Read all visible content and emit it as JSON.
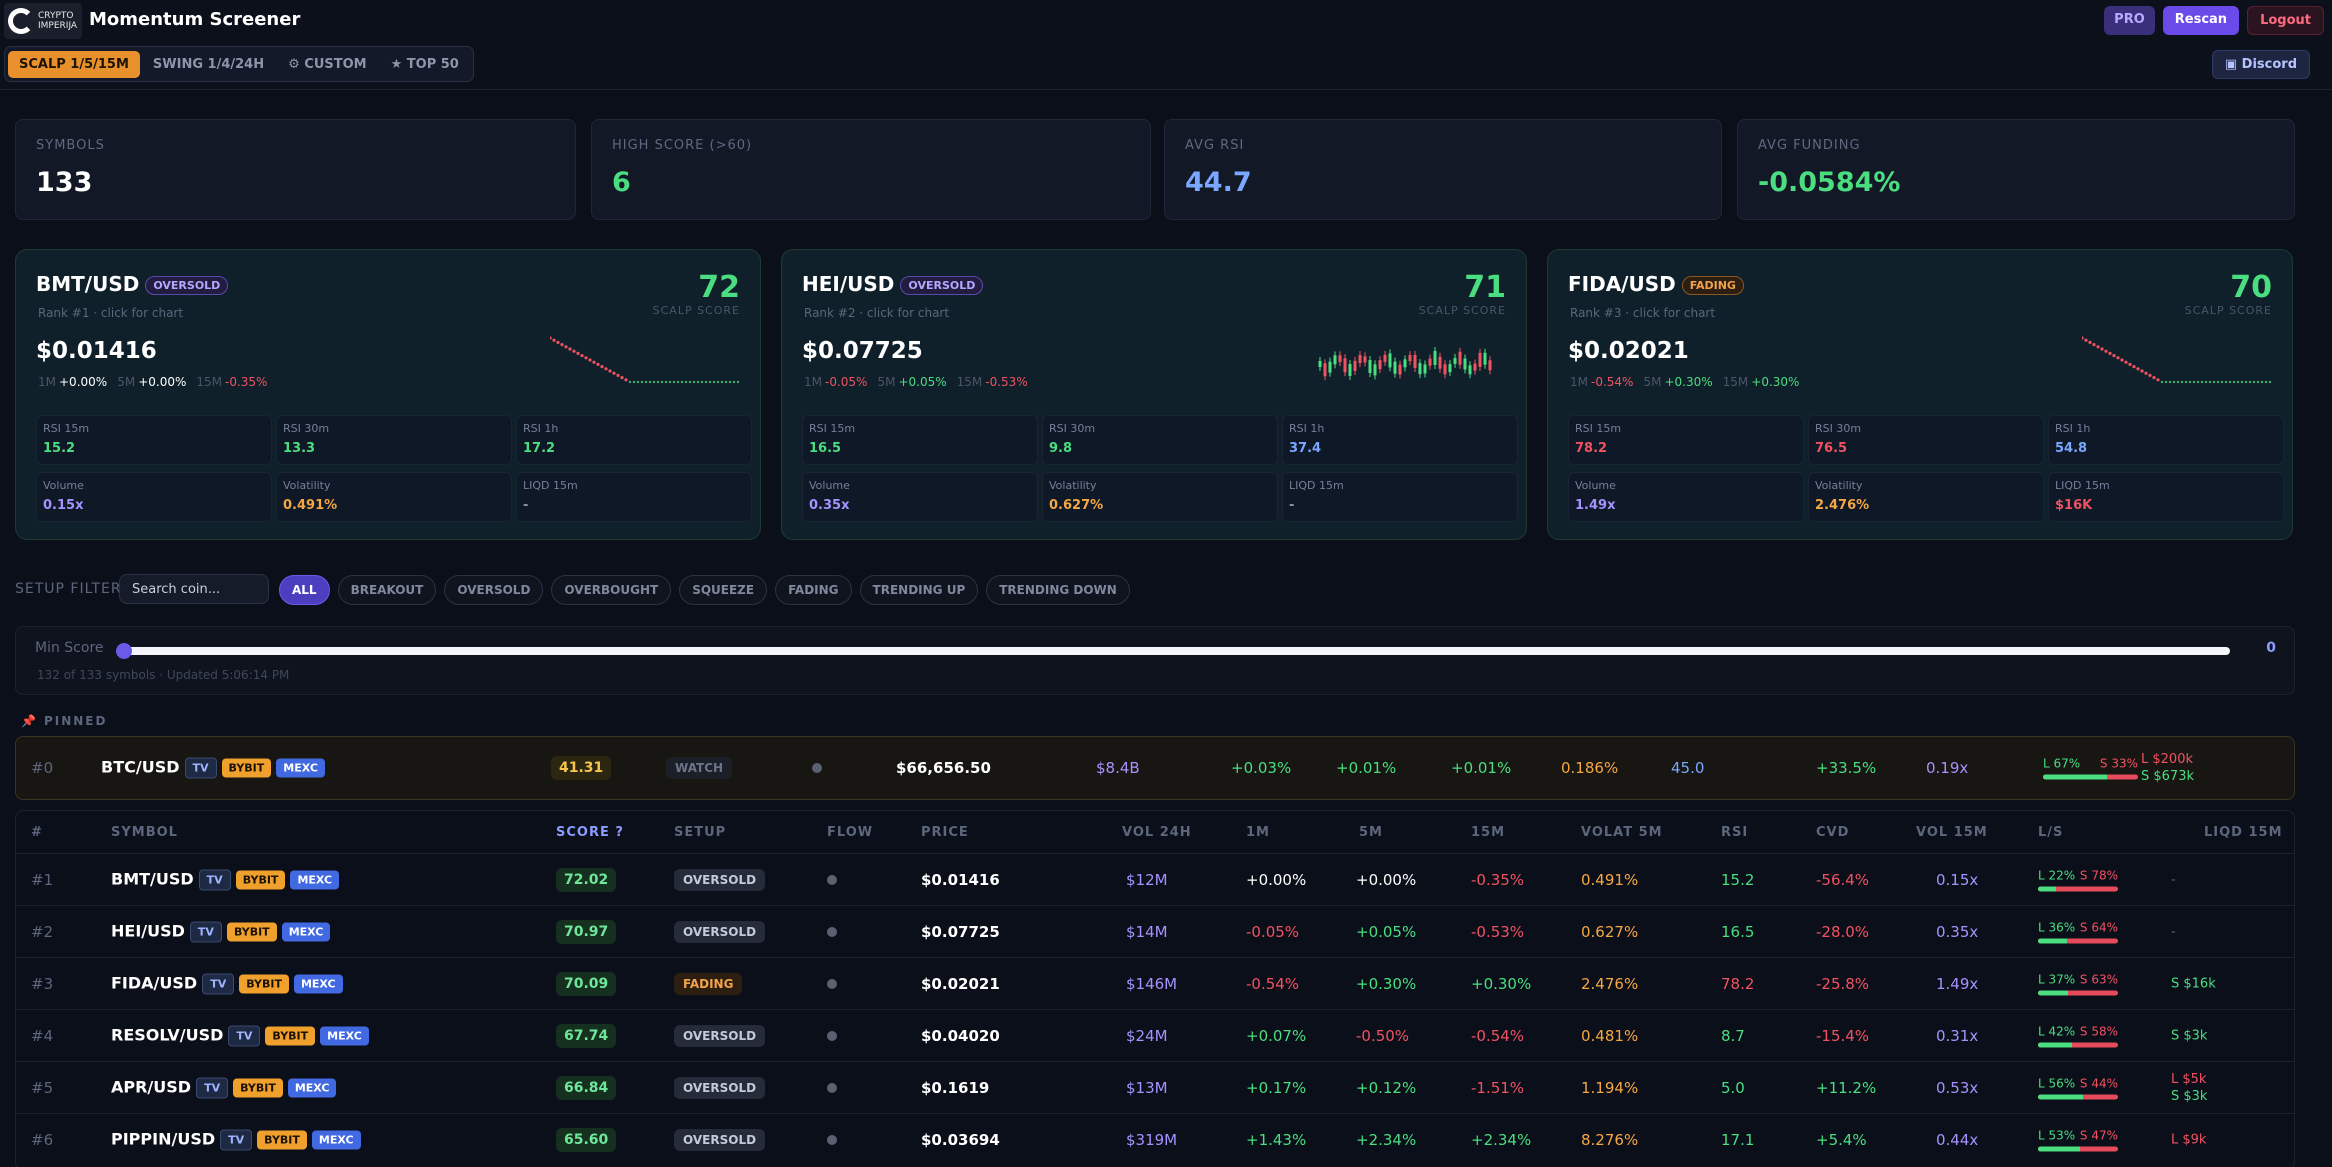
{
  "header": {
    "logo_line1": "CRYPTO",
    "logo_line2": "IMPERIJA",
    "title": "Momentum Screener",
    "pro": "PRO",
    "rescan": "Rescan",
    "logout": "Logout",
    "discord": "Discord",
    "modes": [
      "SCALP 1/5/15M",
      "SWING 1/4/24H",
      "⚙ CUSTOM",
      "★ TOP 50"
    ]
  },
  "stats": [
    {
      "label": "SYMBOLS",
      "value": "133",
      "color": "#ffffff"
    },
    {
      "label": "HIGH SCORE (>60)",
      "value": "6",
      "color": "#4ade80"
    },
    {
      "label": "AVG RSI",
      "value": "44.7",
      "color": "#7aa7ff"
    },
    {
      "label": "AVG FUNDING",
      "value": "-0.0584%",
      "color": "#4ade80"
    }
  ],
  "cards": [
    {
      "symbol": "BMT/USD",
      "badge": "OVERSOLD",
      "rank": "Rank #1 · click for chart",
      "score": "72",
      "score_label": "SCALP SCORE",
      "price": "$0.01416",
      "c1m": "+0.00%",
      "c5m": "+0.00%",
      "c15m": "-0.35%",
      "rsi15": "15.2",
      "rsi30": "13.3",
      "rsi1h": "17.2",
      "volume": "0.15x",
      "volatility": "0.491%",
      "liqd": "-",
      "spark": "down"
    },
    {
      "symbol": "HEI/USD",
      "badge": "OVERSOLD",
      "rank": "Rank #2 · click for chart",
      "score": "71",
      "score_label": "SCALP SCORE",
      "price": "$0.07725",
      "c1m": "-0.05%",
      "c5m": "+0.05%",
      "c15m": "-0.53%",
      "rsi15": "16.5",
      "rsi30": "9.8",
      "rsi1h": "37.4",
      "volume": "0.35x",
      "volatility": "0.627%",
      "liqd": "-",
      "spark": "candles"
    },
    {
      "symbol": "FIDA/USD",
      "badge": "FADING",
      "rank": "Rank #3 · click for chart",
      "score": "70",
      "score_label": "SCALP SCORE",
      "price": "$0.02021",
      "c1m": "-0.54%",
      "c5m": "+0.30%",
      "c15m": "+0.30%",
      "rsi15": "78.2",
      "rsi30": "76.5",
      "rsi1h": "54.8",
      "volume": "1.49x",
      "volatility": "2.476%",
      "liqd": "$16K",
      "spark": "down"
    }
  ],
  "card_labels": {
    "m1": "1M",
    "m5": "5M",
    "m15": "15M",
    "rsi15": "RSI 15m",
    "rsi30": "RSI 30m",
    "rsi1h": "RSI 1h",
    "volume": "Volume",
    "volatility": "Volatility",
    "liqd": "LIQD 15m"
  },
  "filter": {
    "label": "SETUP FILTER",
    "search_placeholder": "Search coin...",
    "pills": [
      "ALL",
      "BREAKOUT",
      "OVERSOLD",
      "OVERBOUGHT",
      "SQUEEZE",
      "FADING",
      "TRENDING UP",
      "TRENDING DOWN"
    ],
    "min_label": "Min Score",
    "min_value": "0",
    "updated": "132 of 133 symbols · Updated 5:06:14 PM"
  },
  "pinned": {
    "label": "PINNED",
    "rank": "#0",
    "symbol": "BTC/USD",
    "score": "41.31",
    "setup": "WATCH",
    "price": "$66,656.50",
    "vol24": "$8.4B",
    "m1": "+0.03%",
    "m5": "+0.01%",
    "m15": "+0.01%",
    "volat": "0.186%",
    "rsi": "45.0",
    "cvd": "+33.5%",
    "vol15": "0.19x",
    "long": "L 67%",
    "short": "S 33%",
    "long_frac": 0.67,
    "liq1": "L $200k",
    "liq2": "S $673k"
  },
  "table": {
    "headers": [
      "#",
      "SYMBOL",
      "SCORE ?",
      "SETUP",
      "FLOW",
      "PRICE",
      "VOL 24H",
      "1M",
      "5M",
      "15M",
      "VOLAT 5M",
      "RSI",
      "CVD",
      "VOL 15M",
      "L/S",
      "LIQD 15M"
    ],
    "tags": {
      "tv": "TV",
      "bybit": "BYBIT",
      "mexc": "MEXC"
    },
    "rows": [
      {
        "rank": "#1",
        "symbol": "BMT/USD",
        "score": "72.02",
        "setup": "OVERSOLD",
        "price": "$0.01416",
        "vol24": "$12M",
        "m1": "+0.00%",
        "m5": "+0.00%",
        "m15": "-0.35%",
        "volat": "0.491%",
        "rsi": "15.2",
        "cvd": "-56.4%",
        "vol15": "0.15x",
        "long": "L 22%",
        "short": "S 78%",
        "long_frac": 0.22,
        "liq1": "-",
        "liq2": ""
      },
      {
        "rank": "#2",
        "symbol": "HEI/USD",
        "score": "70.97",
        "setup": "OVERSOLD",
        "price": "$0.07725",
        "vol24": "$14M",
        "m1": "-0.05%",
        "m5": "+0.05%",
        "m15": "-0.53%",
        "volat": "0.627%",
        "rsi": "16.5",
        "cvd": "-28.0%",
        "vol15": "0.35x",
        "long": "L 36%",
        "short": "S 64%",
        "long_frac": 0.36,
        "liq1": "-",
        "liq2": ""
      },
      {
        "rank": "#3",
        "symbol": "FIDA/USD",
        "score": "70.09",
        "setup": "FADING",
        "price": "$0.02021",
        "vol24": "$146M",
        "m1": "-0.54%",
        "m5": "+0.30%",
        "m15": "+0.30%",
        "volat": "2.476%",
        "rsi": "78.2",
        "cvd": "-25.8%",
        "vol15": "1.49x",
        "long": "L 37%",
        "short": "S 63%",
        "long_frac": 0.37,
        "liq1": "S $16k",
        "liq2": ""
      },
      {
        "rank": "#4",
        "symbol": "RESOLV/USD",
        "score": "67.74",
        "setup": "OVERSOLD",
        "price": "$0.04020",
        "vol24": "$24M",
        "m1": "+0.07%",
        "m5": "-0.50%",
        "m15": "-0.54%",
        "volat": "0.481%",
        "rsi": "8.7",
        "cvd": "-15.4%",
        "vol15": "0.31x",
        "long": "L 42%",
        "short": "S 58%",
        "long_frac": 0.42,
        "liq1": "S $3k",
        "liq2": ""
      },
      {
        "rank": "#5",
        "symbol": "APR/USD",
        "score": "66.84",
        "setup": "OVERSOLD",
        "price": "$0.1619",
        "vol24": "$13M",
        "m1": "+0.17%",
        "m5": "+0.12%",
        "m15": "-1.51%",
        "volat": "1.194%",
        "rsi": "5.0",
        "cvd": "+11.2%",
        "vol15": "0.53x",
        "long": "L 56%",
        "short": "S 44%",
        "long_frac": 0.56,
        "liq1": "L $5k",
        "liq2": "S $3k"
      },
      {
        "rank": "#6",
        "symbol": "PIPPIN/USD",
        "score": "65.60",
        "setup": "OVERSOLD",
        "price": "$0.03694",
        "vol24": "$319M",
        "m1": "+1.43%",
        "m5": "+2.34%",
        "m15": "+2.34%",
        "volat": "8.276%",
        "rsi": "17.1",
        "cvd": "+5.4%",
        "vol15": "0.44x",
        "long": "L 53%",
        "short": "S 47%",
        "long_frac": 0.53,
        "liq1": "L $9k",
        "liq2": ""
      }
    ]
  }
}
